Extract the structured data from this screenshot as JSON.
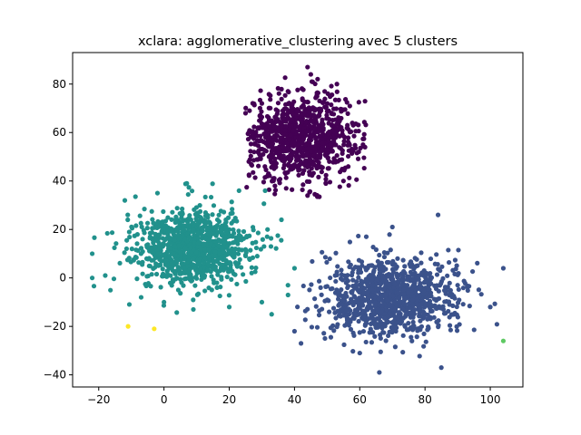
{
  "chart_data": {
    "type": "scatter",
    "title": "xclara: agglomerative_clustering avec 5 clusters",
    "xlabel": "",
    "ylabel": "",
    "xlim": [
      -28,
      110
    ],
    "ylim": [
      -45,
      93
    ],
    "xticks": [
      -20,
      0,
      20,
      40,
      60,
      80,
      100
    ],
    "yticks": [
      -40,
      -20,
      0,
      20,
      40,
      60,
      80
    ],
    "grid": false,
    "legend": "none",
    "series": [
      {
        "cluster": 0,
        "color": "#440154",
        "n_points": 900,
        "center": [
          42,
          58
        ],
        "spread": [
          9,
          9
        ],
        "x_range": [
          25,
          62
        ],
        "y_range": [
          33,
          88
        ],
        "points": [
          [
            25,
            68
          ],
          [
            30,
            72
          ],
          [
            38,
            77
          ],
          [
            45,
            84
          ],
          [
            44,
            87
          ],
          [
            53,
            80
          ],
          [
            58,
            63
          ],
          [
            61,
            55
          ],
          [
            55,
            40
          ],
          [
            44,
            34
          ],
          [
            34,
            38
          ],
          [
            26,
            48
          ],
          [
            26,
            60
          ]
        ]
      },
      {
        "cluster": 1,
        "color": "#3b528b",
        "n_points": 1000,
        "center": [
          70,
          -8
        ],
        "spread": [
          10,
          8
        ],
        "x_range": [
          40,
          104
        ],
        "y_range": [
          -39,
          26
        ],
        "points": [
          [
            40,
            -22
          ],
          [
            42,
            -27
          ],
          [
            48,
            -4
          ],
          [
            55,
            -8
          ],
          [
            62,
            17
          ],
          [
            70,
            21
          ],
          [
            84,
            26
          ],
          [
            90,
            -3
          ],
          [
            100,
            -12
          ],
          [
            104,
            4
          ],
          [
            85,
            -37
          ],
          [
            66,
            -39
          ],
          [
            60,
            -31
          ]
        ]
      },
      {
        "cluster": 2,
        "color": "#21918c",
        "n_points": 1000,
        "center": [
          9,
          12
        ],
        "spread": [
          9,
          8
        ],
        "x_range": [
          -22,
          42
        ],
        "y_range": [
          -17,
          40
        ],
        "points": [
          [
            -22,
            10
          ],
          [
            -22,
            0
          ],
          [
            -18,
            1
          ],
          [
            -12,
            32
          ],
          [
            -2,
            35
          ],
          [
            7,
            39
          ],
          [
            23,
            36
          ],
          [
            31,
            36
          ],
          [
            36,
            24
          ],
          [
            40,
            4
          ],
          [
            38,
            -3
          ],
          [
            30,
            -10
          ],
          [
            20,
            -12
          ],
          [
            9,
            -13
          ],
          [
            0,
            -10
          ],
          [
            -7,
            -8
          ],
          [
            33,
            -15
          ]
        ]
      },
      {
        "cluster": 3,
        "color": "#5ec962",
        "n_points": 1,
        "points": [
          [
            104,
            -26
          ]
        ]
      },
      {
        "cluster": 4,
        "color": "#fde725",
        "n_points": 2,
        "points": [
          [
            -11,
            -20
          ],
          [
            -3,
            -21
          ]
        ]
      }
    ]
  }
}
